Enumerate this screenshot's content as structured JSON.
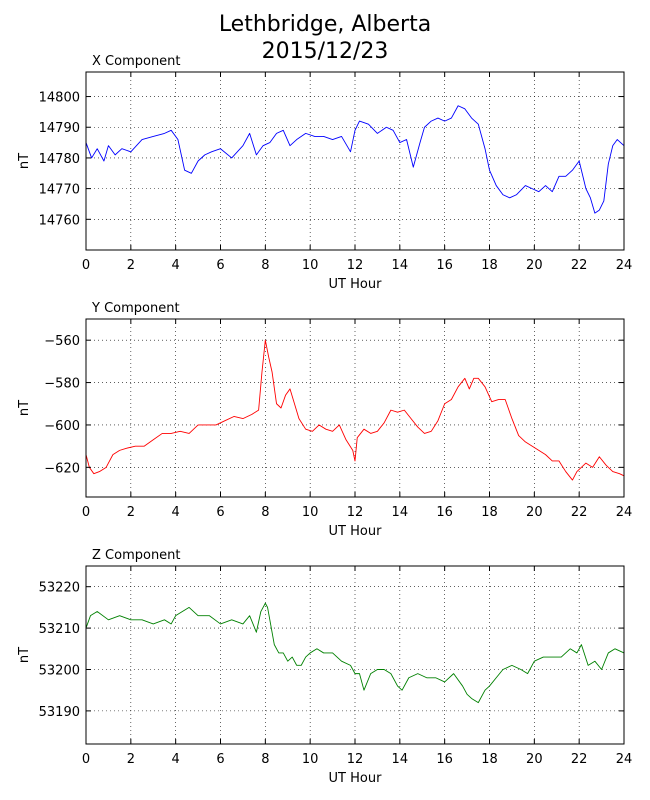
{
  "header": {
    "title": "Lethbridge, Alberta",
    "date": "2015/12/23"
  },
  "chart_data": [
    {
      "type": "line",
      "panel_title": "X Component",
      "xlabel": "UT Hour",
      "ylabel": "nT",
      "xlim": [
        0,
        24
      ],
      "ylim": [
        14750,
        14808
      ],
      "xticks": [
        0,
        2,
        4,
        6,
        8,
        10,
        12,
        14,
        16,
        18,
        20,
        22,
        24
      ],
      "yticks": [
        14760,
        14770,
        14780,
        14790,
        14800
      ],
      "grid": true,
      "color": "#0000ff",
      "series": [
        {
          "x": [
            0,
            0.25,
            0.5,
            0.8,
            1.0,
            1.3,
            1.6,
            2.0,
            2.5,
            3.0,
            3.5,
            3.8,
            4.1,
            4.4,
            4.7,
            5.0,
            5.3,
            5.6,
            6.0,
            6.5,
            7.0,
            7.3,
            7.6,
            7.9,
            8.2,
            8.5,
            8.8,
            9.1,
            9.4,
            9.8,
            10.2,
            10.6,
            11.0,
            11.4,
            11.8,
            12.0,
            12.2,
            12.6,
            13.0,
            13.4,
            13.7,
            14.0,
            14.3,
            14.6,
            14.9,
            15.1,
            15.4,
            15.7,
            16.0,
            16.3,
            16.6,
            16.9,
            17.2,
            17.5,
            17.8,
            18.0,
            18.3,
            18.6,
            18.9,
            19.2,
            19.6,
            19.9,
            20.2,
            20.5,
            20.8,
            21.1,
            21.4,
            21.7,
            22.0,
            22.3,
            22.5,
            22.7,
            22.9,
            23.1,
            23.3,
            23.5,
            23.7,
            24.0
          ],
          "y": [
            14785,
            14780,
            14783,
            14779,
            14784,
            14781,
            14783,
            14782,
            14786,
            14787,
            14788,
            14789,
            14786,
            14776,
            14775,
            14779,
            14781,
            14782,
            14783,
            14780,
            14784,
            14788,
            14781,
            14784,
            14785,
            14788,
            14789,
            14784,
            14786,
            14788,
            14787,
            14787,
            14786,
            14787,
            14782,
            14789,
            14792,
            14791,
            14788,
            14790,
            14789,
            14785,
            14786,
            14777,
            14785,
            14790,
            14792,
            14793,
            14792,
            14793,
            14797,
            14796,
            14793,
            14791,
            14783,
            14776,
            14771,
            14768,
            14767,
            14768,
            14771,
            14770,
            14769,
            14771,
            14769,
            14774,
            14774,
            14776,
            14779,
            14770,
            14767,
            14762,
            14763,
            14766,
            14778,
            14784,
            14786,
            14784
          ]
        }
      ]
    },
    {
      "type": "line",
      "panel_title": "Y Component",
      "xlabel": "UT Hour",
      "ylabel": "nT",
      "xlim": [
        0,
        24
      ],
      "ylim": [
        -634,
        -550
      ],
      "xticks": [
        0,
        2,
        4,
        6,
        8,
        10,
        12,
        14,
        16,
        18,
        20,
        22,
        24
      ],
      "yticks": [
        -620,
        -600,
        -580,
        -560
      ],
      "grid": true,
      "color": "#ff0000",
      "series": [
        {
          "x": [
            0,
            0.15,
            0.35,
            0.6,
            0.9,
            1.2,
            1.5,
            1.8,
            2.2,
            2.6,
            3.0,
            3.4,
            3.8,
            4.2,
            4.6,
            5.0,
            5.4,
            5.8,
            6.2,
            6.6,
            7.0,
            7.4,
            7.7,
            7.85,
            8.0,
            8.15,
            8.3,
            8.5,
            8.7,
            8.9,
            9.1,
            9.3,
            9.5,
            9.8,
            10.1,
            10.4,
            10.7,
            11.0,
            11.3,
            11.6,
            11.9,
            12.0,
            12.1,
            12.4,
            12.7,
            13.0,
            13.3,
            13.6,
            13.9,
            14.2,
            14.5,
            14.8,
            15.1,
            15.4,
            15.7,
            16.0,
            16.3,
            16.6,
            16.9,
            17.1,
            17.3,
            17.5,
            17.8,
            18.1,
            18.4,
            18.7,
            19.0,
            19.3,
            19.6,
            19.9,
            20.2,
            20.5,
            20.8,
            21.1,
            21.4,
            21.7,
            21.9,
            22.1,
            22.3,
            22.6,
            22.9,
            23.2,
            23.5,
            23.8,
            24.0
          ],
          "y": [
            -614,
            -620,
            -623,
            -622,
            -620,
            -614,
            -612,
            -611,
            -610,
            -610,
            -607,
            -604,
            -604,
            -603,
            -604,
            -600,
            -600,
            -600,
            -598,
            -596,
            -597,
            -595,
            -593,
            -575,
            -560,
            -568,
            -575,
            -590,
            -592,
            -586,
            -583,
            -590,
            -597,
            -602,
            -603,
            -600,
            -602,
            -603,
            -600,
            -607,
            -612,
            -617,
            -606,
            -602,
            -604,
            -603,
            -599,
            -593,
            -594,
            -593,
            -597,
            -601,
            -604,
            -603,
            -598,
            -590,
            -588,
            -582,
            -578,
            -583,
            -578,
            -578,
            -582,
            -589,
            -588,
            -588,
            -597,
            -605,
            -608,
            -610,
            -612,
            -614,
            -617,
            -617,
            -622,
            -626,
            -622,
            -620,
            -618,
            -620,
            -615,
            -619,
            -622,
            -623,
            -624
          ]
        }
      ]
    },
    {
      "type": "line",
      "panel_title": "Z Component",
      "xlabel": "UT Hour",
      "ylabel": "nT",
      "xlim": [
        0,
        24
      ],
      "ylim": [
        53182,
        53225
      ],
      "xticks": [
        0,
        2,
        4,
        6,
        8,
        10,
        12,
        14,
        16,
        18,
        20,
        22,
        24
      ],
      "yticks": [
        53190,
        53200,
        53210,
        53220
      ],
      "grid": true,
      "color": "#008000",
      "series": [
        {
          "x": [
            0,
            0.2,
            0.5,
            1.0,
            1.5,
            2.0,
            2.5,
            3.0,
            3.5,
            3.8,
            4.0,
            4.3,
            4.6,
            5.0,
            5.5,
            6.0,
            6.5,
            7.0,
            7.3,
            7.6,
            7.8,
            8.0,
            8.1,
            8.2,
            8.4,
            8.6,
            8.8,
            9.0,
            9.2,
            9.4,
            9.6,
            9.8,
            10.0,
            10.3,
            10.6,
            11.0,
            11.4,
            11.8,
            12.0,
            12.2,
            12.4,
            12.7,
            13.0,
            13.3,
            13.6,
            13.9,
            14.1,
            14.4,
            14.8,
            15.2,
            15.6,
            16.0,
            16.4,
            16.8,
            17.0,
            17.2,
            17.5,
            17.8,
            18.0,
            18.3,
            18.6,
            19.0,
            19.4,
            19.7,
            20.0,
            20.4,
            20.8,
            21.2,
            21.6,
            21.9,
            22.1,
            22.4,
            22.7,
            23.0,
            23.3,
            23.6,
            24.0
          ],
          "y": [
            53210,
            53213,
            53214,
            53212,
            53213,
            53212,
            53212,
            53211,
            53212,
            53211,
            53213,
            53214,
            53215,
            53213,
            53213,
            53211,
            53212,
            53211,
            53213,
            53209,
            53214,
            53216,
            53215,
            53212,
            53206,
            53204,
            53204,
            53202,
            53203,
            53201,
            53201,
            53203,
            53204,
            53205,
            53204,
            53204,
            53202,
            53201,
            53199,
            53199,
            53195,
            53199,
            53200,
            53200,
            53199,
            53196,
            53195,
            53198,
            53199,
            53198,
            53198,
            53197,
            53199,
            53196,
            53194,
            53193,
            53192,
            53195,
            53196,
            53198,
            53200,
            53201,
            53200,
            53199,
            53202,
            53203,
            53203,
            53203,
            53205,
            53204,
            53206,
            53201,
            53202,
            53200,
            53204,
            53205,
            53204
          ]
        }
      ]
    }
  ]
}
